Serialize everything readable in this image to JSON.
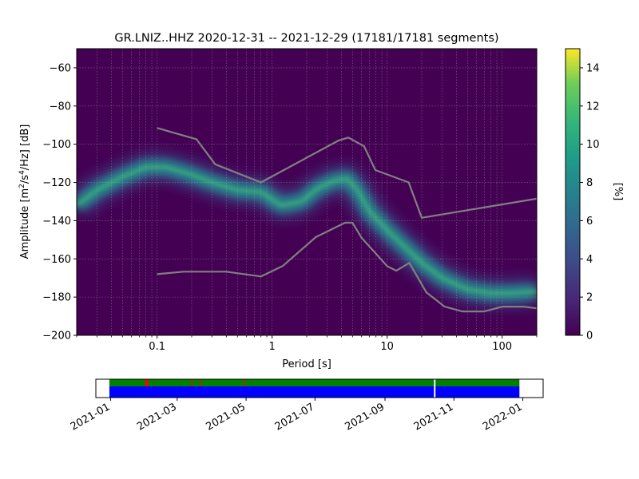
{
  "chart_data": [
    {
      "type": "heatmap",
      "title": "GR.LNIZ..HHZ   2020-12-31 -- 2021-12-29  (17181/17181 segments)",
      "xlabel": "Period [s]",
      "ylabel_main": "Amplitude [m",
      "ylabel_sup1": "2",
      "ylabel_mid": "/s",
      "ylabel_sup2": "4",
      "ylabel_end": "/Hz] [dB]",
      "x_scale": "log",
      "xlim": [
        0.02,
        200
      ],
      "ylim": [
        -200,
        -50
      ],
      "x_ticks": [
        {
          "value": 0.1,
          "label": "0.1"
        },
        {
          "value": 1,
          "label": "1"
        },
        {
          "value": 10,
          "label": "10"
        },
        {
          "value": 100,
          "label": "100"
        }
      ],
      "y_ticks": [
        {
          "value": -60,
          "label": "−60"
        },
        {
          "value": -80,
          "label": "−80"
        },
        {
          "value": -100,
          "label": "−100"
        },
        {
          "value": -120,
          "label": "−120"
        },
        {
          "value": -140,
          "label": "−140"
        },
        {
          "value": -160,
          "label": "−160"
        },
        {
          "value": -180,
          "label": "−180"
        },
        {
          "value": -200,
          "label": "−200"
        }
      ],
      "grid": true,
      "density_ridge": {
        "period": [
          0.02,
          0.03,
          0.05,
          0.08,
          0.12,
          0.2,
          0.3,
          0.5,
          0.8,
          1.2,
          1.8,
          2.5,
          3.5,
          4.5,
          5.5,
          7,
          10,
          15,
          20,
          30,
          50,
          80,
          120,
          200
        ],
        "amplitude_db": [
          -132,
          -124,
          -117,
          -112,
          -112,
          -116,
          -120,
          -124,
          -125,
          -132,
          -130,
          -123,
          -119,
          -118,
          -124,
          -135,
          -145,
          -155,
          -162,
          -170,
          -176,
          -178,
          -178,
          -177
        ],
        "peak_percent": [
          7,
          7,
          8,
          9,
          9,
          9,
          8,
          8,
          8,
          9,
          8,
          8,
          8,
          8,
          7,
          6,
          6,
          6,
          6,
          6,
          7,
          8,
          10,
          11
        ]
      },
      "nhnm": {
        "period": [
          0.1,
          0.22,
          0.32,
          0.8,
          3.8,
          4.6,
          6.3,
          7.9,
          15.4,
          20,
          354.8
        ],
        "amplitude_db": [
          -91.5,
          -97.4,
          -110.5,
          -120,
          -98,
          -96.5,
          -101,
          -113.5,
          -120,
          -138.5,
          -126
        ]
      },
      "nlnm": {
        "period": [
          0.1,
          0.17,
          0.4,
          0.8,
          1.24,
          2.4,
          4.3,
          5,
          6,
          10,
          12,
          15.6,
          21.9,
          31.6,
          45,
          70,
          101,
          154,
          328
        ],
        "amplitude_db": [
          -168,
          -166.7,
          -166.7,
          -169.2,
          -163.7,
          -148.6,
          -141.1,
          -141.1,
          -149,
          -163.8,
          -166.2,
          -162.1,
          -177.5,
          -185,
          -187.5,
          -187.5,
          -185,
          -185,
          -187.5
        ]
      },
      "colorbar": {
        "label": "[%]",
        "min": 0,
        "max": 15,
        "ticks": [
          {
            "value": 0,
            "label": "0"
          },
          {
            "value": 2,
            "label": "2"
          },
          {
            "value": 4,
            "label": "4"
          },
          {
            "value": 6,
            "label": "6"
          },
          {
            "value": 8,
            "label": "8"
          },
          {
            "value": 10,
            "label": "10"
          },
          {
            "value": 12,
            "label": "12"
          },
          {
            "value": 14,
            "label": "14"
          }
        ]
      },
      "colors": {
        "background": "#440154",
        "ridge_low": "#3b528b",
        "ridge_mid": "#21918c",
        "ridge_high": "#5ec962",
        "noise_model_line": "#808080"
      }
    },
    {
      "type": "timeline",
      "xlim": [
        "2020-12-19",
        "2022-01-19"
      ],
      "data_range": [
        "2020-12-31",
        "2021-12-29"
      ],
      "gaps": [
        "2021-10-15"
      ],
      "red_marks": [
        "2021-02-01",
        "2021-02-02",
        "2021-02-03",
        "2021-03-14",
        "2021-03-22",
        "2021-04-29"
      ],
      "x_ticks": [
        {
          "value": "2021-01-01",
          "label": "2021-01"
        },
        {
          "value": "2021-03-01",
          "label": "2021-03"
        },
        {
          "value": "2021-05-01",
          "label": "2021-05"
        },
        {
          "value": "2021-07-01",
          "label": "2021-07"
        },
        {
          "value": "2021-09-01",
          "label": "2021-09"
        },
        {
          "value": "2021-11-01",
          "label": "2021-11"
        },
        {
          "value": "2022-01-01",
          "label": "2022-01"
        }
      ],
      "colors": {
        "top_band": "#008000",
        "bottom_band": "#0000ff",
        "marks": "#ff0000"
      }
    }
  ]
}
